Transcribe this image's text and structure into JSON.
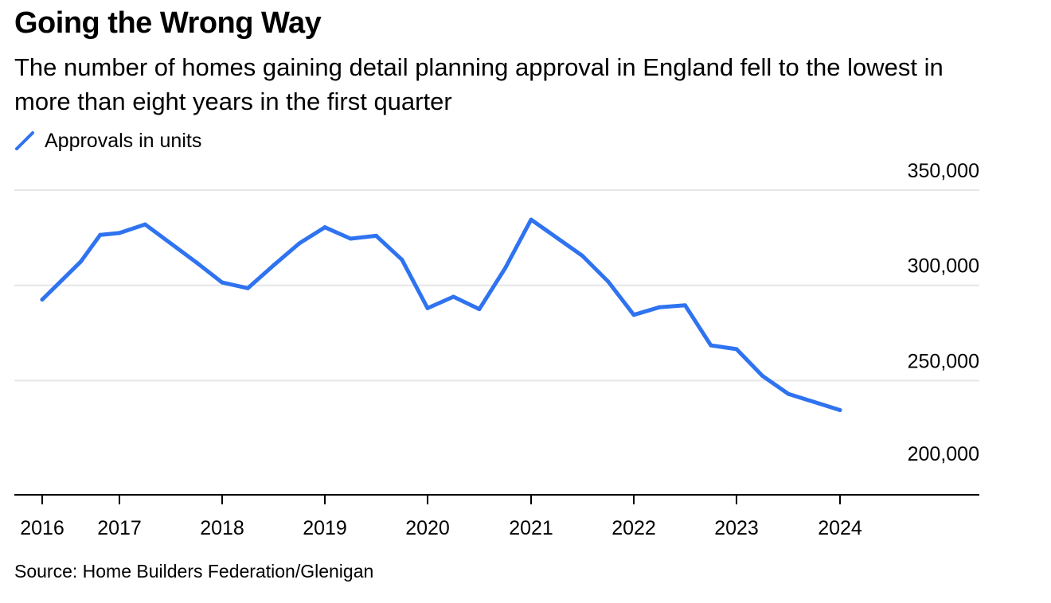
{
  "title": "Going the Wrong Way",
  "subtitle": "The number of homes gaining detail planning approval in England fell to the lowest in more than eight years in the first quarter",
  "source": "Source: Home Builders Federation/Glenigan",
  "colors": {
    "series": "#2f73f0",
    "gridline": "#e6e6e6",
    "axis": "#000000"
  },
  "chart_data": {
    "type": "line",
    "title": "Going the Wrong Way",
    "xlabel": "",
    "ylabel": "",
    "legend_position": "top-left",
    "grid": true,
    "x_ticks": [
      "2016",
      "2017",
      "2018",
      "2019",
      "2020",
      "2021",
      "2022",
      "2023",
      "2024"
    ],
    "y_ticks": [
      200000,
      250000,
      300000,
      350000
    ],
    "y_tick_labels": [
      "200,000",
      "250,000",
      "300,000",
      "350,000"
    ],
    "ylim": [
      190000,
      350000
    ],
    "series": [
      {
        "name": "Approvals in units",
        "color": "#2f73f0",
        "points": [
          {
            "x": "2016",
            "y": 292500
          },
          {
            "x": "2016-Q2",
            "y": 302500
          },
          {
            "x": "2016-Q3",
            "y": 312500
          },
          {
            "x": "2016-Q4",
            "y": 326500
          },
          {
            "x": "2017-Q1",
            "y": 327500
          },
          {
            "x": "2017-Q2",
            "y": 332000
          },
          {
            "x": "2017-Q3",
            "y": 322000
          },
          {
            "x": "2017-Q4",
            "y": 312000
          },
          {
            "x": "2018-Q1",
            "y": 301500
          },
          {
            "x": "2018-Q2",
            "y": 298500
          },
          {
            "x": "2018-Q3",
            "y": 310500
          },
          {
            "x": "2018-Q4",
            "y": 322000
          },
          {
            "x": "2019-Q1",
            "y": 330500
          },
          {
            "x": "2019-Q2",
            "y": 324500
          },
          {
            "x": "2019-Q3",
            "y": 326000
          },
          {
            "x": "2019-Q4",
            "y": 313500
          },
          {
            "x": "2020-Q1",
            "y": 288000
          },
          {
            "x": "2020-Q2",
            "y": 294000
          },
          {
            "x": "2020-Q3",
            "y": 287500
          },
          {
            "x": "2020-Q4",
            "y": 309000
          },
          {
            "x": "2021-Q1",
            "y": 334500
          },
          {
            "x": "2021-Q2",
            "y": 325000
          },
          {
            "x": "2021-Q3",
            "y": 315500
          },
          {
            "x": "2021-Q4",
            "y": 302000
          },
          {
            "x": "2022-Q1",
            "y": 284500
          },
          {
            "x": "2022-Q2",
            "y": 288500
          },
          {
            "x": "2022-Q3",
            "y": 289500
          },
          {
            "x": "2022-Q4",
            "y": 268500
          },
          {
            "x": "2023-Q1",
            "y": 266500
          },
          {
            "x": "2023-Q2",
            "y": 252500
          },
          {
            "x": "2023-Q3",
            "y": 243000
          },
          {
            "x": "2024-Q1",
            "y": 234500
          }
        ]
      }
    ]
  }
}
